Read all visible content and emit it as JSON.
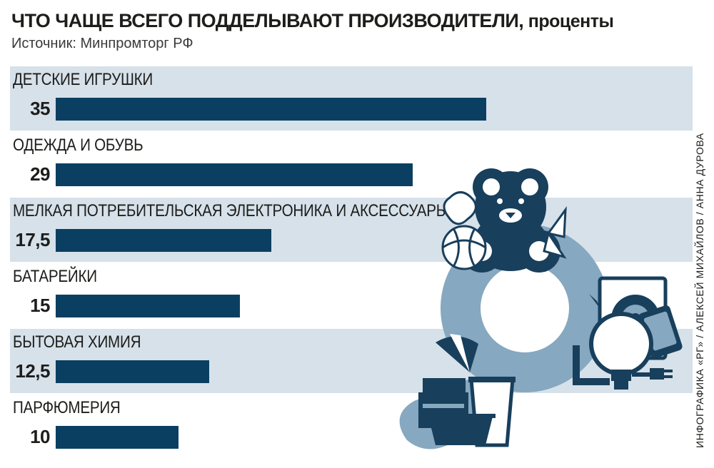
{
  "header": {
    "title": "ЧТО ЧАЩЕ ВСЕГО ПОДДЕЛЫВАЮТ ПРОИЗВОДИТЕЛИ,",
    "title_units": " проценты",
    "source": "Источник: Минпромторг РФ"
  },
  "credit": "ИНФОГРАФИКА «РГ» / АЛЕКСЕЙ МИХАЙЛОВ / АННА ДУРОВА",
  "colors": {
    "bar": "#0b3f61",
    "band": "#d6e1ea",
    "illustration_dark": "#183f5c",
    "illustration_light": "#86a8c0"
  },
  "illustration": {
    "icons": [
      "teddy-bear-icon",
      "ball-icon",
      "toy-windmill-icon",
      "magnifier-icon",
      "lightbulb-icon",
      "phone-icon",
      "speaker-icon",
      "plug-icon",
      "fan-icon",
      "jar-icon",
      "bucket-icon",
      "bowl-icon"
    ]
  },
  "chart_data": {
    "type": "bar",
    "orientation": "horizontal",
    "categories": [
      "ДЕТСКИЕ ИГРУШКИ",
      "ОДЕЖДА И ОБУВЬ",
      "МЕЛКАЯ ПОТРЕБИТЕЛЬСКАЯ ЭЛЕКТРОНИКА И АКСЕССУАРЫ",
      "БАТАРЕЙКИ",
      "БЫТОВАЯ ХИМИЯ",
      "ПАРФЮМЕРИЯ"
    ],
    "values": [
      35,
      29,
      17.5,
      15,
      12.5,
      10
    ],
    "value_labels": [
      "35",
      "29",
      "17,5",
      "15",
      "12,5",
      "10"
    ],
    "title": "ЧТО ЧАЩЕ ВСЕГО ПОДДЕЛЫВАЮТ ПРОИЗВОДИТЕЛИ, проценты",
    "xlim": [
      0,
      35
    ],
    "grid": false,
    "alternating_bands": true
  }
}
